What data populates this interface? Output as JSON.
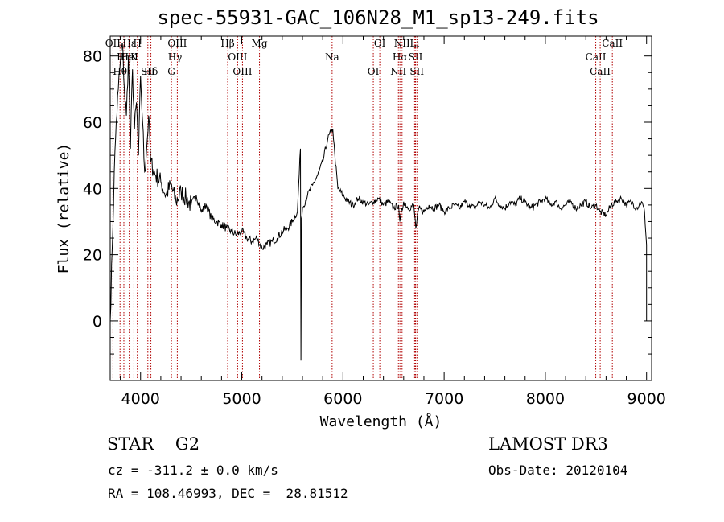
{
  "chart_data": {
    "type": "line",
    "title": "spec-55931-GAC_106N28_M1_sp13-249.fits",
    "xlabel": "Wavelength (Å)",
    "ylabel": "Flux (relative)",
    "xlim": [
      3700,
      9050
    ],
    "ylim": [
      -18,
      86
    ],
    "xticks": [
      "4000",
      "5000",
      "6000",
      "7000",
      "8000",
      "9000"
    ],
    "yticks": [
      "0",
      "20",
      "40",
      "60",
      "80"
    ],
    "xtick_values": [
      4000,
      5000,
      6000,
      7000,
      8000,
      9000
    ],
    "ytick_values": [
      0,
      20,
      40,
      60,
      80
    ],
    "series": [
      {
        "name": "spectrum",
        "x": [
          3700,
          3720,
          3740,
          3760,
          3780,
          3800,
          3820,
          3840,
          3860,
          3880,
          3900,
          3920,
          3940,
          3960,
          3980,
          4000,
          4020,
          4040,
          4060,
          4080,
          4100,
          4150,
          4200,
          4250,
          4300,
          4350,
          4400,
          4450,
          4500,
          4550,
          4600,
          4650,
          4700,
          4750,
          4800,
          4850,
          4900,
          4950,
          5000,
          5050,
          5100,
          5150,
          5200,
          5250,
          5300,
          5350,
          5400,
          5450,
          5500,
          5550,
          5580,
          5585,
          5590,
          5600,
          5650,
          5700,
          5750,
          5800,
          5850,
          5880,
          5900,
          5920,
          5950,
          6000,
          6050,
          6100,
          6150,
          6200,
          6250,
          6300,
          6350,
          6400,
          6450,
          6500,
          6550,
          6563,
          6600,
          6650,
          6700,
          6720,
          6750,
          6800,
          6850,
          6900,
          6950,
          7000,
          7050,
          7100,
          7150,
          7200,
          7250,
          7300,
          7350,
          7400,
          7450,
          7500,
          7550,
          7600,
          7650,
          7700,
          7750,
          7800,
          7850,
          7900,
          7950,
          8000,
          8050,
          8100,
          8150,
          8200,
          8250,
          8300,
          8350,
          8400,
          8450,
          8500,
          8540,
          8600,
          8650,
          8700,
          8750,
          8800,
          8850,
          8900,
          8950,
          8980,
          9000
        ],
        "values": [
          0,
          22,
          45,
          60,
          70,
          78,
          84,
          70,
          62,
          80,
          52,
          76,
          58,
          66,
          50,
          74,
          60,
          45,
          52,
          62,
          48,
          44,
          42,
          38,
          41,
          36,
          39,
          37,
          35,
          38,
          33,
          35,
          31,
          30,
          29,
          28,
          27,
          26,
          27,
          25,
          24,
          25,
          22,
          23,
          24,
          25,
          27,
          28,
          30,
          33,
          52,
          -12,
          31,
          34,
          38,
          41,
          44,
          48,
          55,
          57,
          58,
          50,
          40,
          38,
          36,
          35,
          37,
          36,
          35,
          36,
          37,
          35,
          36,
          34,
          35,
          30,
          36,
          34,
          35,
          28,
          34,
          33,
          35,
          34,
          35,
          33,
          34,
          35,
          34,
          36,
          35,
          34,
          36,
          35,
          34,
          37,
          35,
          34,
          36,
          35,
          37,
          36,
          34,
          35,
          36,
          37,
          35,
          36,
          34,
          35,
          36,
          34,
          35,
          36,
          34,
          35,
          33,
          32,
          35,
          36,
          37,
          35,
          36,
          34,
          36,
          33,
          23
        ]
      }
    ],
    "lines": [
      {
        "name": "OII",
        "wl": 3727
      },
      {
        "name": "Hη",
        "wl": 3835
      },
      {
        "name": "Hθ",
        "wl": 3797
      },
      {
        "name": "Hε",
        "wl": 3889
      },
      {
        "name": "HeI",
        "wl": 3889
      },
      {
        "name": "SII",
        "wl": 4072
      },
      {
        "name": "H",
        "wl": 3968
      },
      {
        "name": "K",
        "wl": 3934
      },
      {
        "name": "Hδ",
        "wl": 4102
      },
      {
        "name": "OIII",
        "wl": 4363
      },
      {
        "name": "Hγ",
        "wl": 4340
      },
      {
        "name": "G",
        "wl": 4305
      },
      {
        "name": "Hβ",
        "wl": 4861
      },
      {
        "name": "OIII",
        "wl": 4959
      },
      {
        "name": "OIII",
        "wl": 5007
      },
      {
        "name": "Mg",
        "wl": 5175
      },
      {
        "name": "Na",
        "wl": 5893
      },
      {
        "name": "OI",
        "wl": 6300
      },
      {
        "name": "OI",
        "wl": 6364
      },
      {
        "name": "Hα",
        "wl": 6563
      },
      {
        "name": "NII",
        "wl": 6548
      },
      {
        "name": "NII",
        "wl": 6584
      },
      {
        "name": "SII",
        "wl": 6717
      },
      {
        "name": "SII",
        "wl": 6731
      },
      {
        "name": "Li",
        "wl": 6708
      },
      {
        "name": "CaII",
        "wl": 8498
      },
      {
        "name": "CaII",
        "wl": 8542
      },
      {
        "name": "CaII",
        "wl": 8662
      }
    ],
    "line_color": "#b00000"
  },
  "info": {
    "type_text": "STAR    G2",
    "survey": "LAMOST DR3",
    "cz": "cz = -311.2 ± 0.0 km/s",
    "obs_date": "Obs-Date: 20120104",
    "coords": "RA = 108.46993, DEC =  28.81512"
  }
}
